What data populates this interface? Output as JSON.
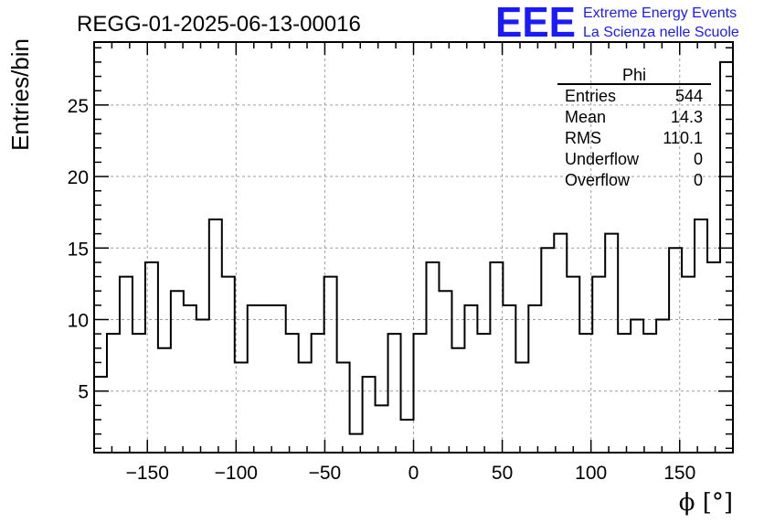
{
  "chart_data": {
    "type": "histogram",
    "title": "REGG-01-2025-06-13-00016",
    "xlabel": "ϕ [°]",
    "ylabel": "Entries/bin",
    "xlim": [
      -180,
      180
    ],
    "ylim": [
      0.7,
      29.4
    ],
    "grid": true,
    "bin_width": 7.2,
    "values": [
      6,
      9,
      13,
      9,
      14,
      8,
      12,
      11,
      10,
      17,
      13,
      7,
      11,
      11,
      11,
      9,
      7,
      9,
      13,
      7,
      2,
      6,
      4,
      9,
      3,
      9,
      14,
      12,
      8,
      11,
      9,
      14,
      11,
      7,
      11,
      15,
      16,
      13,
      9,
      13,
      16,
      9,
      10,
      9,
      10,
      15,
      13,
      17,
      14,
      28
    ],
    "x_ticks": [
      -150,
      -100,
      -50,
      0,
      50,
      100,
      150
    ],
    "x_tick_labels": [
      "−150",
      "−100",
      "−50",
      "0",
      "50",
      "100",
      "150"
    ],
    "y_ticks": [
      5,
      10,
      15,
      20,
      25
    ],
    "y_tick_labels": [
      "5",
      "10",
      "15",
      "20",
      "25"
    ],
    "line_color": "#000000",
    "grid_color": "#9e9e9e"
  },
  "stats_box": {
    "title": "Phi",
    "rows": [
      {
        "label": "Entries",
        "value": "544"
      },
      {
        "label": "Mean",
        "value": "14.3"
      },
      {
        "label": "RMS",
        "value": "110.1"
      },
      {
        "label": "Underflow",
        "value": "0"
      },
      {
        "label": "Overflow",
        "value": "0"
      }
    ]
  },
  "logo": {
    "text": "EEE",
    "line1": "Extreme Energy Events",
    "line2": "La Scienza nelle Scuole",
    "color": "#1a1aff"
  }
}
